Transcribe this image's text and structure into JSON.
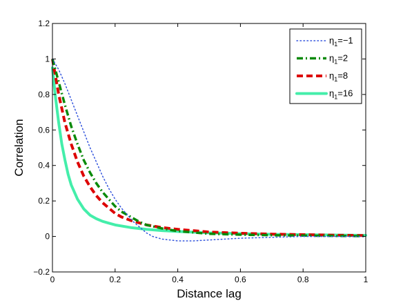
{
  "chart_data": {
    "type": "line",
    "title": "",
    "xlabel": "Distance lag",
    "ylabel": "Correlation",
    "xlim": [
      0,
      1
    ],
    "ylim": [
      -0.2,
      1.2
    ],
    "xticks": [
      0,
      0.2,
      0.4,
      0.6,
      0.8,
      1
    ],
    "xtick_labels": [
      "0",
      "0.2",
      "0.4",
      "0.6",
      "0.8",
      "1"
    ],
    "yticks": [
      -0.2,
      0,
      0.2,
      0.4,
      0.6,
      0.8,
      1,
      1.2
    ],
    "ytick_labels": [
      "−0.2",
      "0",
      "0.2",
      "0.4",
      "0.6",
      "0.8",
      "1",
      "1.2"
    ],
    "grid": false,
    "legend_position": "top-right",
    "series": [
      {
        "label_base": "η",
        "label_sub": "1",
        "label_tail": "=−1",
        "color": "#3355dd",
        "style": "dotted",
        "points": [
          [
            0,
            1.0
          ],
          [
            0.02,
            0.94
          ],
          [
            0.04,
            0.86
          ],
          [
            0.06,
            0.77
          ],
          [
            0.08,
            0.68
          ],
          [
            0.1,
            0.59
          ],
          [
            0.12,
            0.5
          ],
          [
            0.14,
            0.42
          ],
          [
            0.16,
            0.34
          ],
          [
            0.18,
            0.27
          ],
          [
            0.2,
            0.21
          ],
          [
            0.22,
            0.16
          ],
          [
            0.24,
            0.12
          ],
          [
            0.26,
            0.08
          ],
          [
            0.28,
            0.05
          ],
          [
            0.3,
            0.02
          ],
          [
            0.32,
            0.0
          ],
          [
            0.35,
            -0.015
          ],
          [
            0.4,
            -0.025
          ],
          [
            0.45,
            -0.025
          ],
          [
            0.5,
            -0.02
          ],
          [
            0.55,
            -0.015
          ],
          [
            0.6,
            -0.01
          ],
          [
            0.7,
            -0.005
          ],
          [
            0.8,
            0.0
          ],
          [
            0.9,
            0.0
          ],
          [
            1.0,
            0.0
          ]
        ]
      },
      {
        "label_base": "η",
        "label_sub": "1",
        "label_tail": "=2",
        "color": "#0a8a0a",
        "style": "dashdot",
        "points": [
          [
            0,
            1.0
          ],
          [
            0.02,
            0.87
          ],
          [
            0.04,
            0.74
          ],
          [
            0.06,
            0.62
          ],
          [
            0.08,
            0.52
          ],
          [
            0.1,
            0.43
          ],
          [
            0.12,
            0.36
          ],
          [
            0.14,
            0.3
          ],
          [
            0.16,
            0.25
          ],
          [
            0.18,
            0.21
          ],
          [
            0.2,
            0.17
          ],
          [
            0.22,
            0.14
          ],
          [
            0.25,
            0.11
          ],
          [
            0.28,
            0.08
          ],
          [
            0.3,
            0.065
          ],
          [
            0.35,
            0.045
          ],
          [
            0.4,
            0.03
          ],
          [
            0.5,
            0.015
          ],
          [
            0.6,
            0.01
          ],
          [
            0.7,
            0.007
          ],
          [
            0.8,
            0.005
          ],
          [
            0.9,
            0.003
          ],
          [
            1.0,
            0.002
          ]
        ]
      },
      {
        "label_base": "η",
        "label_sub": "1",
        "label_tail": "=8",
        "color": "#dd0000",
        "style": "dashed",
        "points": [
          [
            0,
            1.0
          ],
          [
            0.02,
            0.8
          ],
          [
            0.04,
            0.64
          ],
          [
            0.06,
            0.52
          ],
          [
            0.08,
            0.42
          ],
          [
            0.1,
            0.34
          ],
          [
            0.12,
            0.28
          ],
          [
            0.14,
            0.23
          ],
          [
            0.16,
            0.19
          ],
          [
            0.18,
            0.16
          ],
          [
            0.2,
            0.13
          ],
          [
            0.22,
            0.11
          ],
          [
            0.25,
            0.09
          ],
          [
            0.3,
            0.065
          ],
          [
            0.35,
            0.05
          ],
          [
            0.4,
            0.04
          ],
          [
            0.5,
            0.025
          ],
          [
            0.6,
            0.018
          ],
          [
            0.7,
            0.013
          ],
          [
            0.8,
            0.01
          ],
          [
            0.9,
            0.007
          ],
          [
            1.0,
            0.005
          ]
        ]
      },
      {
        "label_base": "η",
        "label_sub": "1",
        "label_tail": "=16",
        "color": "#44eeaa",
        "style": "solid",
        "points": [
          [
            0,
            0.95
          ],
          [
            0.01,
            0.78
          ],
          [
            0.02,
            0.64
          ],
          [
            0.03,
            0.52
          ],
          [
            0.04,
            0.43
          ],
          [
            0.05,
            0.35
          ],
          [
            0.06,
            0.29
          ],
          [
            0.08,
            0.21
          ],
          [
            0.1,
            0.155
          ],
          [
            0.12,
            0.12
          ],
          [
            0.14,
            0.1
          ],
          [
            0.16,
            0.085
          ],
          [
            0.18,
            0.075
          ],
          [
            0.2,
            0.065
          ],
          [
            0.25,
            0.05
          ],
          [
            0.3,
            0.04
          ],
          [
            0.35,
            0.033
          ],
          [
            0.4,
            0.028
          ],
          [
            0.5,
            0.02
          ],
          [
            0.6,
            0.016
          ],
          [
            0.7,
            0.012
          ],
          [
            0.8,
            0.01
          ],
          [
            0.9,
            0.008
          ],
          [
            1.0,
            0.006
          ]
        ]
      }
    ]
  }
}
